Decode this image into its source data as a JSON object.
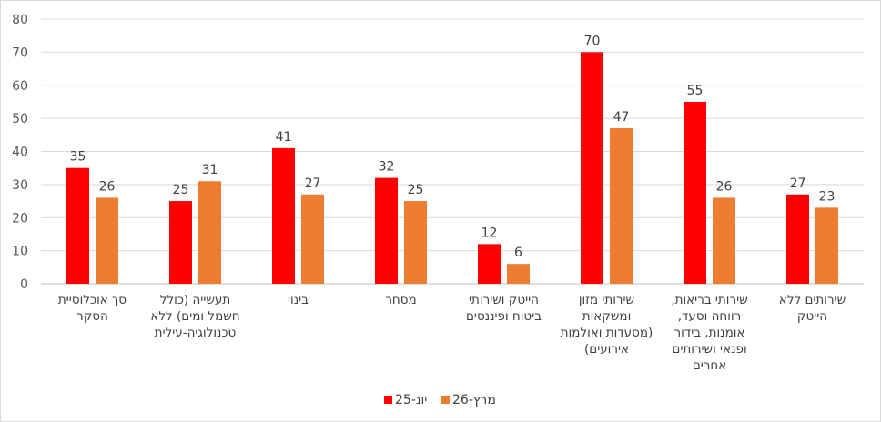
{
  "chart_data": {
    "type": "bar",
    "title": "",
    "xlabel": "",
    "ylabel": "",
    "ylim": [
      0,
      80
    ],
    "yticks": [
      0,
      10,
      20,
      30,
      40,
      50,
      60,
      70,
      80
    ],
    "grid": true,
    "legend": "bottom",
    "categories": [
      [
        "סך אוכלוסיית",
        "הסקר"
      ],
      [
        "תעשייה (כולל",
        "חשמל ומים) ללא",
        "טכנולוגיה-עילית"
      ],
      [
        "בינוי"
      ],
      [
        "מסחר"
      ],
      [
        "הייטק ושירותי",
        "ביטוח ופיננסים"
      ],
      [
        "שירותי מזון",
        "ומשקאות",
        "(מסעדות ואולמות",
        "אירועים)"
      ],
      [
        "שירותי בריאות,",
        "רווחה וסעד,",
        "אומנות, בידור",
        "ופנאי ושירותים",
        "אחרים"
      ],
      [
        "שירותים ללא",
        "הייטק"
      ]
    ],
    "series": [
      {
        "name": "יונ-25",
        "color": "#ff0000",
        "values": [
          35,
          25,
          41,
          32,
          12,
          70,
          55,
          27
        ],
        "labels": [
          "35",
          "25",
          "41",
          "32",
          "12",
          "70",
          "55",
          "27"
        ]
      },
      {
        "name": "מרץ-26",
        "color": "#ed7d31",
        "values": [
          26,
          31,
          27,
          25,
          6,
          47,
          26,
          23
        ],
        "labels": [
          "26",
          "31",
          "27",
          "25",
          "6",
          "47",
          "26",
          "23"
        ]
      }
    ]
  }
}
